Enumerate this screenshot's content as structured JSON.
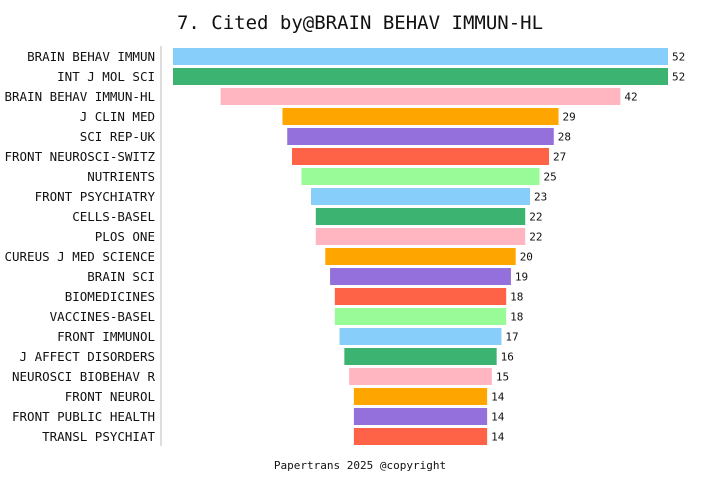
{
  "chart_data": {
    "type": "bar",
    "orientation": "horizontal",
    "layout": "centered-funnel",
    "title": "7. Cited by@BRAIN BEHAV IMMUN-HL",
    "categories": [
      "BRAIN BEHAV IMMUN",
      "INT J MOL SCI",
      "BRAIN BEHAV IMMUN-HL",
      "J CLIN MED",
      "SCI REP-UK",
      "FRONT NEUROSCI-SWITZ",
      "NUTRIENTS",
      "FRONT PSYCHIATRY",
      "CELLS-BASEL",
      "PLOS ONE",
      "CUREUS J MED SCIENCE",
      "BRAIN SCI",
      "BIOMEDICINES",
      "VACCINES-BASEL",
      "FRONT IMMUNOL",
      "J AFFECT DISORDERS",
      "NEUROSCI BIOBEHAV R",
      "FRONT NEUROL",
      "FRONT PUBLIC HEALTH",
      "TRANSL PSYCHIAT"
    ],
    "values": [
      52,
      52,
      42,
      29,
      28,
      27,
      25,
      23,
      22,
      22,
      20,
      19,
      18,
      18,
      17,
      16,
      15,
      14,
      14,
      14
    ],
    "colors": [
      "#87CEFA",
      "#3CB371",
      "#FFB6C1",
      "#FFA500",
      "#9370DB",
      "#FF6347",
      "#98FB98",
      "#87CEFA",
      "#3CB371",
      "#FFB6C1",
      "#FFA500",
      "#9370DB",
      "#FF6347",
      "#98FB98",
      "#87CEFA",
      "#3CB371",
      "#FFB6C1",
      "#FFA500",
      "#9370DB",
      "#FF6347"
    ],
    "xlim": [
      0,
      52
    ],
    "grid": false,
    "legend": "none"
  },
  "footer": "Papertrans 2025 @copyright"
}
